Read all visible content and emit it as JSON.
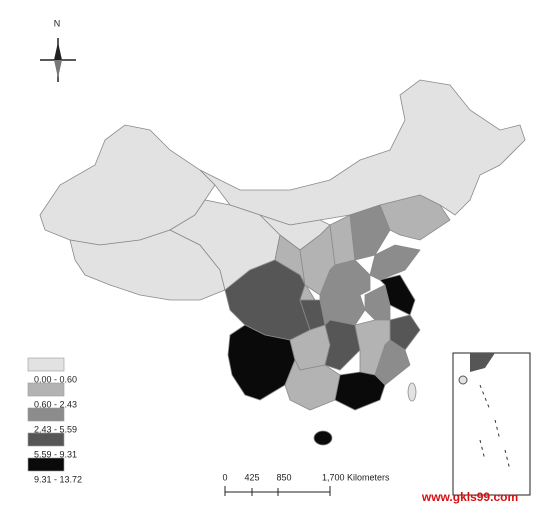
{
  "compass": {
    "label": "N"
  },
  "legend": {
    "items": [
      {
        "label": "0.00 - 0.60",
        "color": "#e2e2e2"
      },
      {
        "label": "0.60 - 2.43",
        "color": "#b3b3b3"
      },
      {
        "label": "2.43 - 5.59",
        "color": "#8c8c8c"
      },
      {
        "label": "5.59 - 9.31",
        "color": "#565656"
      },
      {
        "label": "9.31 - 13.72",
        "color": "#0a0a0a"
      }
    ]
  },
  "scale_bar": {
    "ticks": [
      "0",
      "425",
      "850"
    ],
    "unit_label": "1,700 Kilometers"
  },
  "watermark": "www.gkls99.com"
}
